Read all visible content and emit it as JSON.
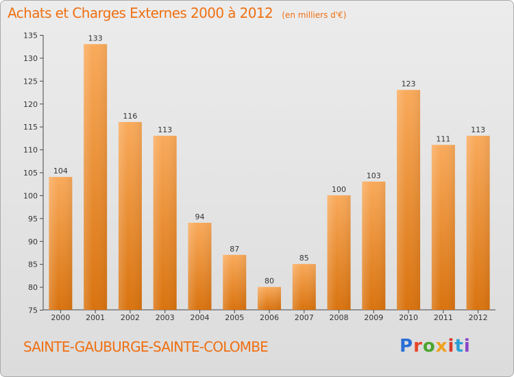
{
  "header": {
    "title": "Achats et Charges Externes 2000 à 2012",
    "unit": "(en milliers d'€)"
  },
  "footer": {
    "commune": "SAINTE-GAUBURGE-SAINTE-COLOMBE",
    "logo": "Proxiti"
  },
  "colors": {
    "accent": "#ef6f11",
    "bar_light": "#f9aa5b",
    "bar_dark": "#d9730f",
    "logo_letters": [
      "#2a6fd6",
      "#e8462a",
      "#4aa52e",
      "#f0a11c",
      "#d9392a",
      "#2a9fd6",
      "#8a43c9"
    ]
  },
  "chart_data": {
    "type": "bar",
    "categories": [
      "2000",
      "2001",
      "2002",
      "2003",
      "2004",
      "2005",
      "2006",
      "2007",
      "2008",
      "2009",
      "2010",
      "2011",
      "2012"
    ],
    "values": [
      104,
      133,
      116,
      113,
      94,
      87,
      80,
      85,
      100,
      103,
      123,
      111,
      113
    ],
    "title": "Achats et Charges Externes 2000 à 2012",
    "subtitle": "(en milliers d'€)",
    "xlabel": "",
    "ylabel": "",
    "ylim": [
      75,
      135
    ],
    "yticks": [
      75,
      80,
      85,
      90,
      95,
      100,
      105,
      110,
      115,
      120,
      125,
      130,
      135
    ],
    "grid": false,
    "data_labels": true
  }
}
